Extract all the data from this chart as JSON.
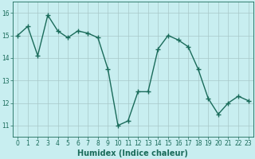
{
  "x": [
    0,
    1,
    2,
    3,
    4,
    5,
    6,
    7,
    8,
    9,
    10,
    11,
    12,
    13,
    14,
    15,
    16,
    17,
    18,
    19,
    20,
    21,
    22,
    23
  ],
  "y": [
    15.0,
    15.4,
    14.1,
    15.9,
    15.2,
    14.9,
    15.2,
    15.1,
    14.9,
    13.5,
    11.0,
    11.2,
    12.5,
    12.5,
    14.4,
    15.0,
    14.8,
    14.5,
    13.5,
    12.2,
    11.5,
    12.0,
    12.3,
    12.1
  ],
  "line_color": "#1a6b5a",
  "marker": "+",
  "marker_size": 4,
  "linewidth": 1.0,
  "xlabel": "Humidex (Indice chaleur)",
  "xlabel_fontsize": 7,
  "xlabel_color": "#1a6b5a",
  "xlabel_fontweight": "bold",
  "xlim": [
    -0.5,
    23.5
  ],
  "ylim": [
    10.5,
    16.5
  ],
  "yticks": [
    11,
    12,
    13,
    14,
    15,
    16
  ],
  "xticks": [
    0,
    1,
    2,
    3,
    4,
    5,
    6,
    7,
    8,
    9,
    10,
    11,
    12,
    13,
    14,
    15,
    16,
    17,
    18,
    19,
    20,
    21,
    22,
    23
  ],
  "bg_color": "#c8eef0",
  "plot_bg_color": "#c8eef0",
  "grid_color": "#a8c8c8",
  "grid_linewidth": 0.5,
  "tick_color": "#1a6b5a",
  "tick_fontsize": 5.5,
  "spine_color": "#1a6b5a",
  "fig_width": 3.2,
  "fig_height": 2.0,
  "dpi": 100
}
